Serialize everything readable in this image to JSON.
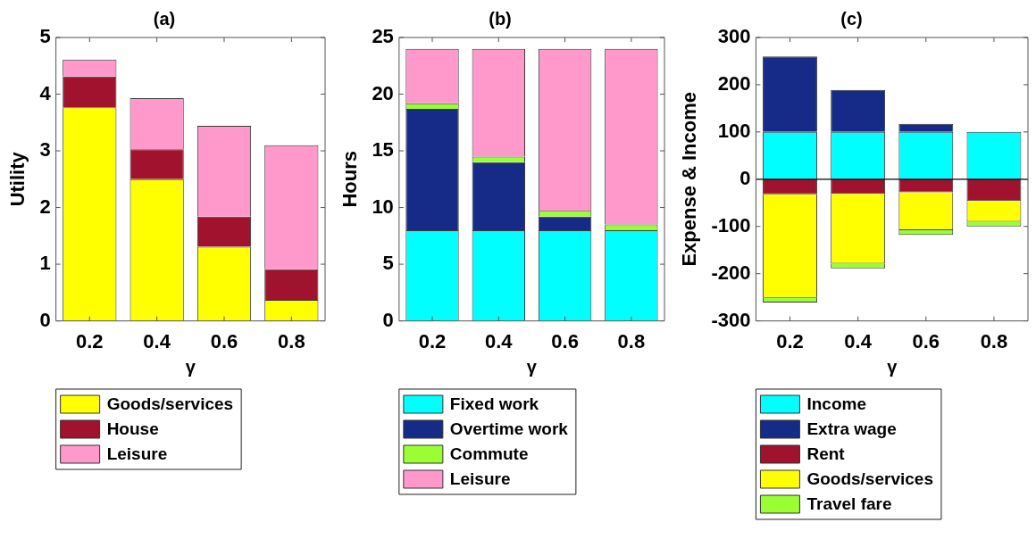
{
  "chart_data": [
    {
      "type": "bar",
      "title": "(a)",
      "xlabel": "γ",
      "ylabel": "Utility",
      "stacked": true,
      "legend": "bottom",
      "categories": [
        "0.2",
        "0.4",
        "0.6",
        "0.8"
      ],
      "ylim": [
        0,
        5
      ],
      "yticks": [
        0,
        1,
        2,
        3,
        4,
        5
      ],
      "series": [
        {
          "name": "Goods/services",
          "color": "#ffff00",
          "values": [
            3.77,
            2.5,
            1.31,
            0.37
          ]
        },
        {
          "name": "House",
          "color": "#a0122d",
          "values": [
            0.54,
            0.53,
            0.53,
            0.54
          ]
        },
        {
          "name": "Leisure",
          "color": "#ff99cc",
          "values": [
            0.3,
            0.9,
            1.6,
            2.19
          ]
        }
      ]
    },
    {
      "type": "bar",
      "title": "(b)",
      "xlabel": "γ",
      "ylabel": "Hours",
      "stacked": true,
      "legend": "bottom",
      "categories": [
        "0.2",
        "0.4",
        "0.6",
        "0.8"
      ],
      "ylim": [
        0,
        25
      ],
      "yticks": [
        0,
        5,
        10,
        15,
        20,
        25
      ],
      "series": [
        {
          "name": "Fixed work",
          "color": "#00ffff",
          "values": [
            8,
            8,
            8,
            8
          ]
        },
        {
          "name": "Overtime work",
          "color": "#162a87",
          "values": [
            10.7,
            6,
            1.2,
            0
          ]
        },
        {
          "name": "Commute",
          "color": "#99ff33",
          "values": [
            0.5,
            0.5,
            0.5,
            0.5
          ]
        },
        {
          "name": "Leisure",
          "color": "#ff99cc",
          "values": [
            4.8,
            9.5,
            14.3,
            15.5
          ]
        }
      ]
    },
    {
      "type": "bar",
      "title": "(c)",
      "xlabel": "γ",
      "ylabel": "Expense & Income",
      "stacked": true,
      "legend": "bottom",
      "categories": [
        "0.2",
        "0.4",
        "0.6",
        "0.8"
      ],
      "ylim": [
        -300,
        300
      ],
      "yticks": [
        -300,
        -200,
        -100,
        0,
        100,
        200,
        300
      ],
      "ref_lines": [
        {
          "axis": "y",
          "value": 0,
          "color": "#000000"
        }
      ],
      "series": [
        {
          "name": "Income",
          "color": "#00ffff",
          "values": [
            100,
            100,
            100,
            100
          ]
        },
        {
          "name": "Extra wage",
          "color": "#162a87",
          "values": [
            160,
            89,
            17,
            0
          ]
        },
        {
          "name": "Rent",
          "color": "#a0122d",
          "values": [
            -32,
            -31,
            -28,
            -46
          ]
        },
        {
          "name": "Goods/services",
          "color": "#ffff00",
          "values": [
            -219,
            -148,
            -80,
            -44
          ]
        },
        {
          "name": "Travel fare",
          "color": "#99ff33",
          "values": [
            -10,
            -10,
            -10,
            -10
          ]
        }
      ]
    }
  ]
}
